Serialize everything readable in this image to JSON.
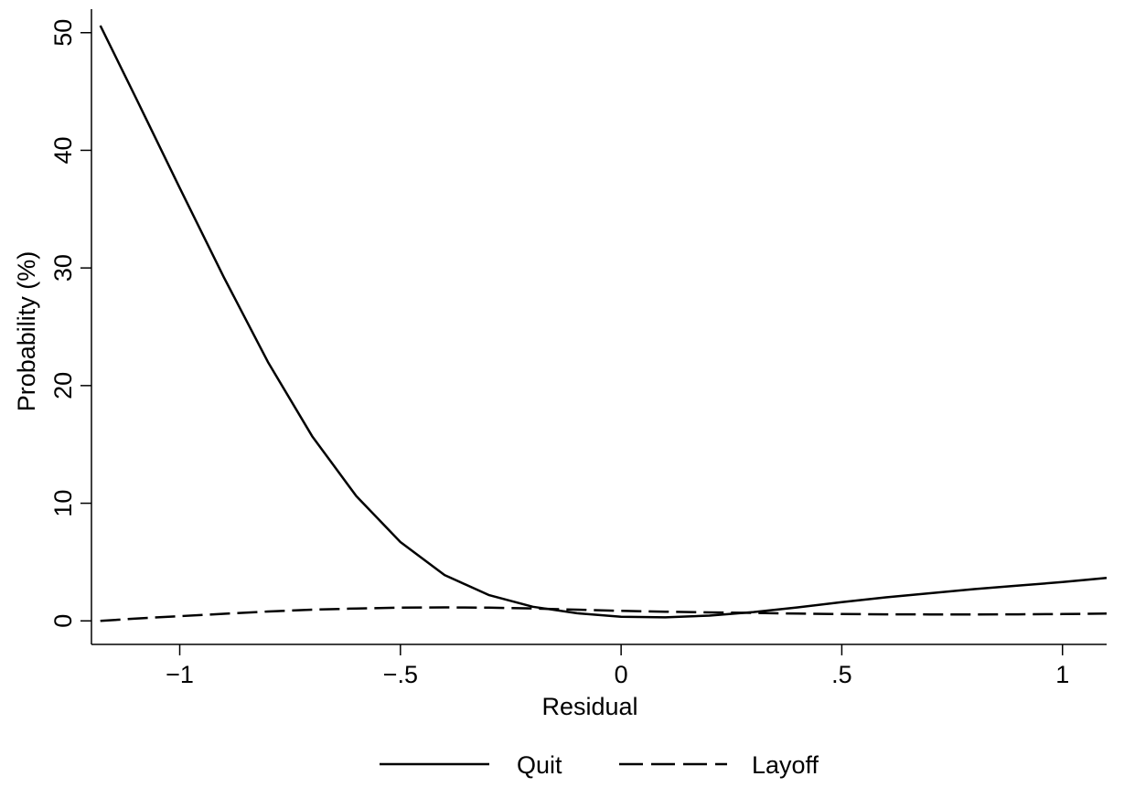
{
  "chart_data": {
    "type": "line",
    "xlabel": "Residual",
    "ylabel": "Probability (%)",
    "xlim": [
      -1.2,
      1.1
    ],
    "ylim": [
      -2,
      52
    ],
    "x_ticks": [
      -1,
      -0.5,
      0,
      0.5,
      1
    ],
    "x_tick_labels": [
      "−1",
      "−.5",
      "0",
      ".5",
      "1"
    ],
    "y_ticks": [
      0,
      10,
      20,
      30,
      40,
      50
    ],
    "y_tick_labels": [
      "0",
      "10",
      "20",
      "30",
      "40",
      "50"
    ],
    "grid": false,
    "legend_position": "bottom",
    "series": [
      {
        "name": "Quit",
        "style": "solid",
        "color": "#000000",
        "x": [
          -1.18,
          -1.1,
          -1.0,
          -0.9,
          -0.8,
          -0.7,
          -0.6,
          -0.5,
          -0.4,
          -0.3,
          -0.2,
          -0.1,
          0.0,
          0.1,
          0.2,
          0.3,
          0.4,
          0.5,
          0.6,
          0.7,
          0.8,
          0.9,
          1.0,
          1.1
        ],
        "y": [
          50.6,
          44.5,
          36.8,
          29.2,
          22.0,
          15.7,
          10.6,
          6.7,
          3.9,
          2.2,
          1.2,
          0.65,
          0.35,
          0.3,
          0.45,
          0.75,
          1.15,
          1.6,
          2.0,
          2.35,
          2.7,
          3.0,
          3.3,
          3.65
        ]
      },
      {
        "name": "Layoff",
        "style": "dashed",
        "color": "#000000",
        "x": [
          -1.18,
          -1.1,
          -1.0,
          -0.9,
          -0.8,
          -0.7,
          -0.6,
          -0.5,
          -0.4,
          -0.3,
          -0.2,
          -0.1,
          0.0,
          0.1,
          0.2,
          0.3,
          0.4,
          0.5,
          0.6,
          0.7,
          0.8,
          0.9,
          1.0,
          1.1
        ],
        "y": [
          0.0,
          0.2,
          0.4,
          0.6,
          0.8,
          0.95,
          1.05,
          1.12,
          1.15,
          1.12,
          1.05,
          0.95,
          0.85,
          0.78,
          0.72,
          0.68,
          0.62,
          0.58,
          0.56,
          0.55,
          0.55,
          0.56,
          0.58,
          0.62
        ]
      }
    ]
  }
}
